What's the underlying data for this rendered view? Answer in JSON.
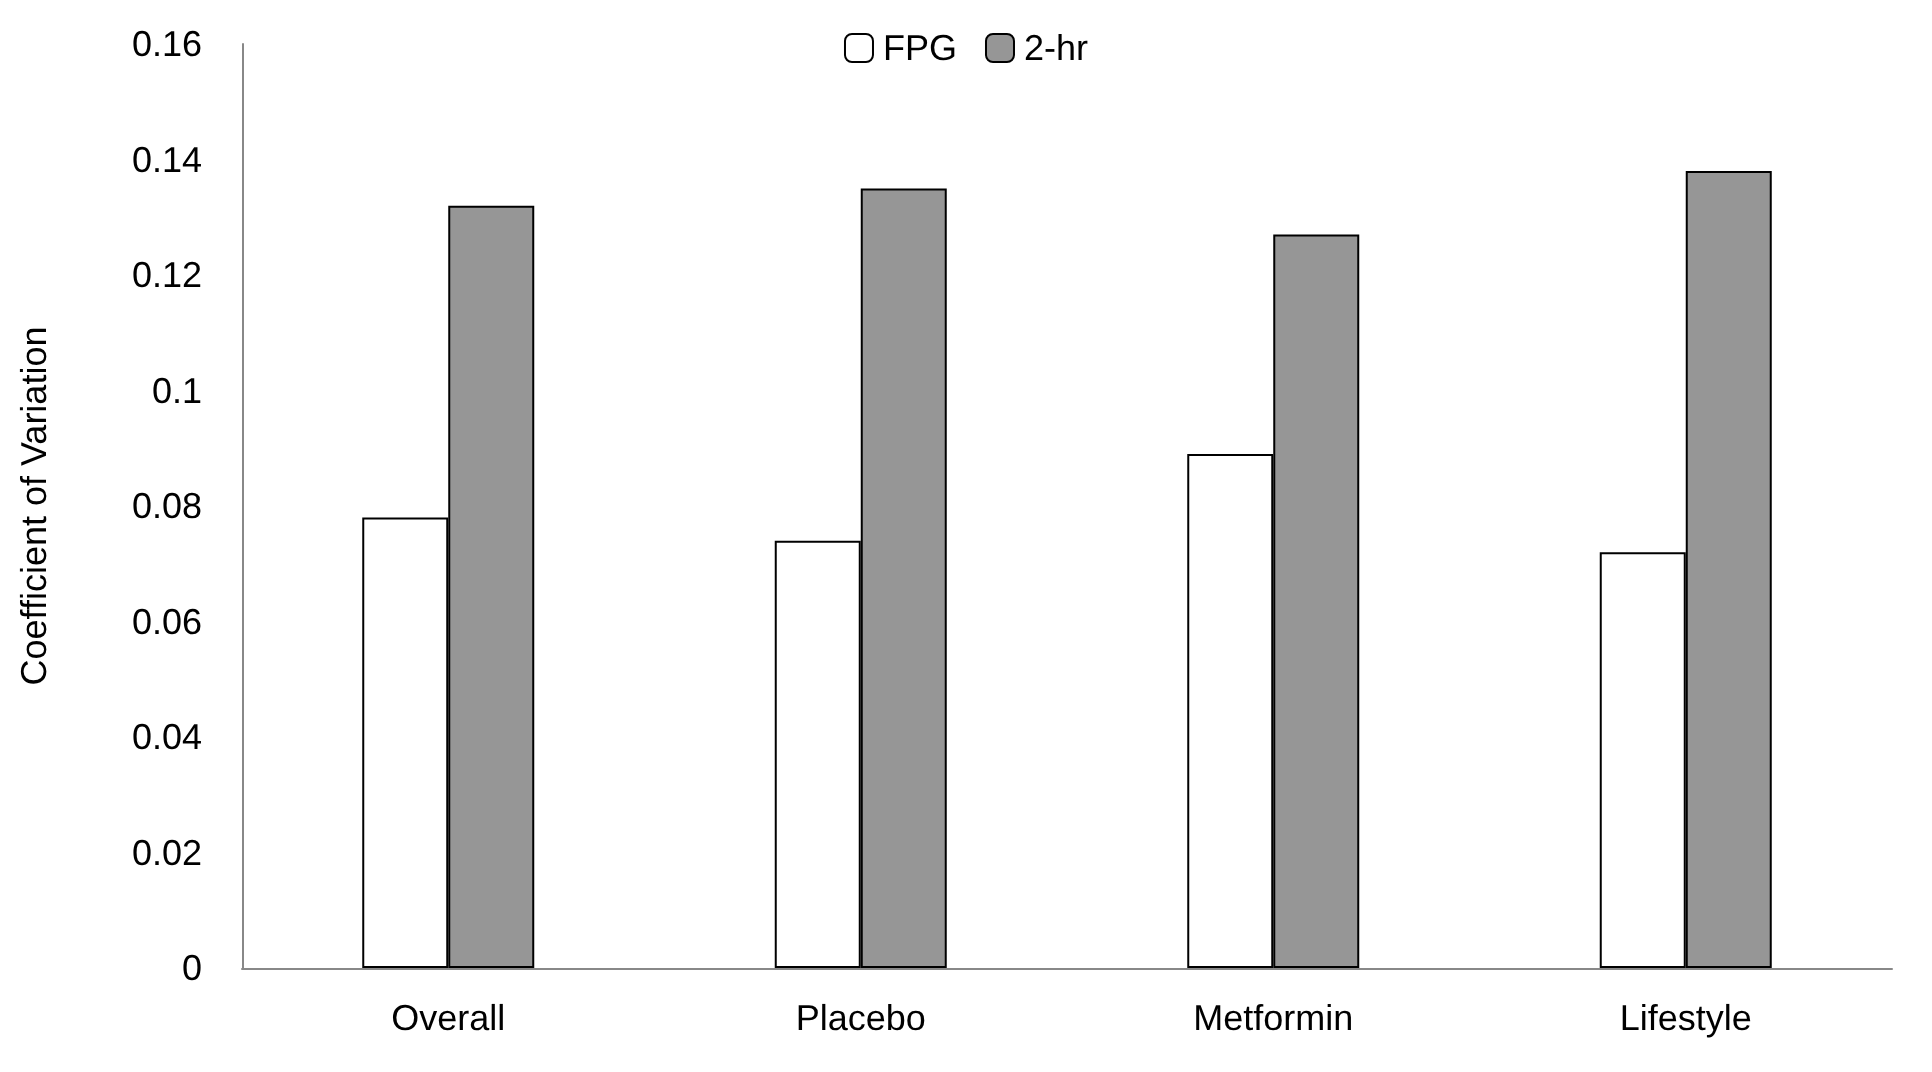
{
  "chart_data": {
    "type": "bar",
    "ylabel": "Coefficient of Variation",
    "categories": [
      "Overall",
      "Placebo",
      "Metformin",
      "Lifestyle"
    ],
    "series": [
      {
        "name": "FPG",
        "color": "#ffffff",
        "values": [
          0.078,
          0.074,
          0.089,
          0.072
        ]
      },
      {
        "name": "2-hr",
        "color": "#969696",
        "values": [
          0.132,
          0.135,
          0.127,
          0.138
        ]
      }
    ],
    "ylim": [
      0,
      0.16
    ],
    "yticks": [
      0,
      0.02,
      0.04,
      0.06,
      0.08,
      0.1,
      0.12,
      0.14,
      0.16
    ],
    "grid": false,
    "legend": "top"
  }
}
